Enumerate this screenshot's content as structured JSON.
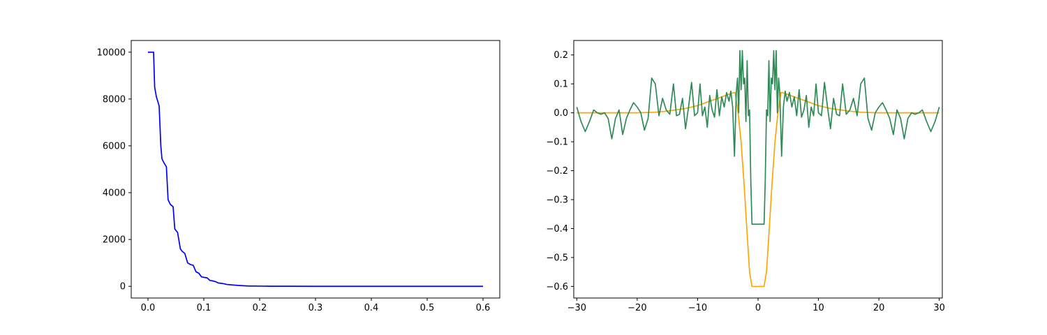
{
  "figure": {
    "background": "#ffffff"
  },
  "chart_data": [
    {
      "type": "line",
      "title": "",
      "xlabel": "",
      "ylabel": "",
      "xlim": [
        -0.03,
        0.63
      ],
      "ylim": [
        -500,
        10500
      ],
      "grid": false,
      "xticks": [
        0.0,
        0.1,
        0.2,
        0.3,
        0.4,
        0.5,
        0.6
      ],
      "xtick_labels": [
        "0.0",
        "0.1",
        "0.2",
        "0.3",
        "0.4",
        "0.5",
        "0.6"
      ],
      "yticks": [
        0,
        2000,
        4000,
        6000,
        8000,
        10000
      ],
      "ytick_labels": [
        "0",
        "2000",
        "4000",
        "6000",
        "8000",
        "10000"
      ],
      "series": [
        {
          "color": "#0000ff",
          "x": [
            0.0,
            0.01,
            0.012,
            0.015,
            0.02,
            0.023,
            0.025,
            0.028,
            0.033,
            0.036,
            0.04,
            0.045,
            0.048,
            0.053,
            0.058,
            0.061,
            0.066,
            0.071,
            0.076,
            0.081,
            0.086,
            0.091,
            0.096,
            0.101,
            0.106,
            0.111,
            0.116,
            0.121,
            0.126,
            0.131,
            0.136,
            0.141,
            0.146,
            0.15,
            0.16,
            0.17,
            0.18,
            0.2,
            0.22,
            0.25,
            0.3,
            0.4,
            0.5,
            0.6
          ],
          "y": [
            10000,
            10000,
            8500,
            8100,
            7700,
            6000,
            5450,
            5300,
            5100,
            3700,
            3500,
            3400,
            2450,
            2300,
            1600,
            1500,
            1400,
            1000,
            930,
            900,
            620,
            560,
            400,
            380,
            360,
            250,
            230,
            200,
            140,
            130,
            110,
            80,
            70,
            60,
            40,
            25,
            15,
            8,
            4,
            2,
            0,
            0,
            0,
            0
          ]
        }
      ]
    },
    {
      "type": "line",
      "title": "",
      "xlabel": "",
      "ylabel": "",
      "xlim": [
        -30.5,
        30.5
      ],
      "ylim": [
        -0.64,
        0.25
      ],
      "grid": false,
      "xticks": [
        -30,
        -20,
        -10,
        0,
        10,
        20,
        30
      ],
      "xtick_labels": [
        "−30",
        "−20",
        "−10",
        "0",
        "10",
        "20",
        "30"
      ],
      "yticks": [
        -0.6,
        -0.5,
        -0.4,
        -0.3,
        -0.2,
        -0.1,
        0.0,
        0.1,
        0.2
      ],
      "ytick_labels": [
        "−0.6",
        "−0.5",
        "−0.4",
        "−0.3",
        "−0.2",
        "−0.1",
        "0.0",
        "0.1",
        "0.2"
      ],
      "series": [
        {
          "color": "#ffa500",
          "x": [
            -30,
            -25,
            -20,
            -17,
            -15,
            -12,
            -10,
            -8,
            -6,
            -5,
            -4,
            -3.8,
            -3.3,
            -2.8,
            -2.3,
            -1.8,
            -1.4,
            -1,
            0,
            1,
            1.4,
            1.8,
            2.3,
            2.8,
            3.3,
            3.8,
            4,
            5,
            6,
            8,
            10,
            12,
            15,
            17,
            20,
            25,
            30
          ],
          "y": [
            0,
            0,
            0,
            0.002,
            0.006,
            0.015,
            0.025,
            0.04,
            0.055,
            0.063,
            0.07,
            0.07,
            0.0,
            -0.1,
            -0.25,
            -0.42,
            -0.55,
            -0.6,
            -0.6,
            -0.6,
            -0.55,
            -0.42,
            -0.25,
            -0.1,
            0.0,
            0.07,
            0.07,
            0.063,
            0.055,
            0.04,
            0.025,
            0.015,
            0.006,
            0.002,
            0,
            0,
            0
          ]
        },
        {
          "color": "#2e8b57",
          "x": [
            -30,
            -29.3,
            -28.6,
            -27.9,
            -27.2,
            -26.6,
            -26.0,
            -25.4,
            -24.8,
            -24.2,
            -23.6,
            -23.0,
            -22.4,
            -21.8,
            -21.2,
            -20.6,
            -20.0,
            -19.4,
            -18.8,
            -18.2,
            -17.6,
            -17.0,
            -16.4,
            -15.8,
            -15.2,
            -14.6,
            -14.0,
            -13.5,
            -13.0,
            -12.5,
            -12.0,
            -11.5,
            -11.0,
            -10.5,
            -10.0,
            -9.6,
            -9.2,
            -8.8,
            -8.4,
            -8.0,
            -7.6,
            -7.2,
            -6.8,
            -6.4,
            -6.0,
            -5.6,
            -5.2,
            -4.8,
            -4.5,
            -4.2,
            -3.9,
            -3.6,
            -3.4,
            -3.2,
            -3.0,
            -2.8,
            -2.6,
            -2.4,
            -2.2,
            -2.0,
            -1.8,
            -1.6,
            -1.4,
            -1.2,
            -1.0,
            0.0,
            1.0,
            1.2,
            1.4,
            1.6,
            1.8,
            2.0,
            2.2,
            2.4,
            2.6,
            2.8,
            3.0,
            3.2,
            3.4,
            3.6,
            3.9,
            4.2,
            4.5,
            4.8,
            5.2,
            5.6,
            6.0,
            6.4,
            6.8,
            7.2,
            7.6,
            8.0,
            8.4,
            8.8,
            9.2,
            9.6,
            10.0,
            10.5,
            11.0,
            11.5,
            12.0,
            12.5,
            13.0,
            13.5,
            14.0,
            14.6,
            15.2,
            15.8,
            16.4,
            17.0,
            17.6,
            18.2,
            18.8,
            19.4,
            20.0,
            20.6,
            21.2,
            21.8,
            22.4,
            23.0,
            23.6,
            24.2,
            24.8,
            25.4,
            26.0,
            26.6,
            27.2,
            27.9,
            28.6,
            29.3,
            30.0
          ],
          "y": [
            0.02,
            -0.03,
            -0.065,
            -0.03,
            0.01,
            0.0,
            -0.005,
            0.0,
            -0.02,
            -0.09,
            -0.02,
            0.01,
            -0.075,
            -0.02,
            0.01,
            0.035,
            0.02,
            0.0,
            -0.06,
            -0.02,
            0.12,
            0.1,
            -0.01,
            0.05,
            0.01,
            -0.005,
            0.1,
            -0.01,
            -0.005,
            0.05,
            -0.055,
            0.02,
            0.105,
            -0.01,
            0.0,
            0.1,
            -0.01,
            0.02,
            -0.05,
            0.06,
            0.01,
            -0.015,
            0.08,
            -0.01,
            0.055,
            0.02,
            0.07,
            0.04,
            0.075,
            0.02,
            -0.15,
            0.07,
            0.12,
            0.0,
            0.215,
            0.08,
            0.215,
            0.1,
            0.12,
            -0.03,
            0.18,
            -0.01,
            0.01,
            -0.23,
            -0.385,
            -0.385,
            -0.385,
            -0.23,
            0.01,
            -0.01,
            0.18,
            -0.03,
            0.12,
            0.1,
            0.215,
            0.08,
            0.215,
            0.0,
            0.12,
            0.07,
            -0.15,
            0.02,
            0.075,
            0.04,
            0.07,
            0.02,
            0.055,
            -0.01,
            0.08,
            -0.015,
            0.01,
            0.06,
            -0.05,
            0.02,
            -0.01,
            0.1,
            0.0,
            -0.01,
            0.105,
            0.02,
            -0.055,
            0.05,
            -0.005,
            -0.01,
            0.1,
            -0.005,
            0.01,
            0.05,
            -0.01,
            0.1,
            0.12,
            -0.02,
            -0.06,
            0.0,
            0.02,
            0.035,
            0.01,
            -0.02,
            -0.075,
            0.01,
            -0.02,
            -0.09,
            -0.02,
            0.0,
            -0.005,
            0.0,
            0.01,
            -0.03,
            -0.065,
            -0.03,
            0.02
          ]
        }
      ]
    }
  ]
}
